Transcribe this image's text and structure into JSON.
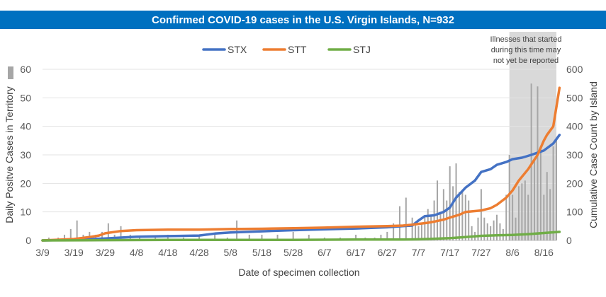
{
  "colors": {
    "title_bg": "#0070c0",
    "stx": "#4472c4",
    "stt": "#ed7d31",
    "stj": "#70ad47",
    "daily_bars": "#a6a6a6",
    "shade": "#d9d9d9"
  },
  "chart_data": {
    "type": "line",
    "title": "Confirmed COVID-19 cases in the U.S. Virgin Islands, N=932",
    "xlabel": "Date of specimen collection",
    "ylabel_left": "Daily Positve Cases in Territory",
    "ylabel_right": "Cumulative Case Count by Island",
    "ylim_left": [
      0,
      60
    ],
    "ylim_right": [
      0,
      600
    ],
    "left_ticks": [
      "0",
      "10",
      "20",
      "30",
      "40",
      "50",
      "60"
    ],
    "right_ticks": [
      "0",
      "100",
      "200",
      "300",
      "400",
      "500",
      "600"
    ],
    "x_tick_labels": [
      "3/9",
      "3/19",
      "3/29",
      "4/8",
      "4/18",
      "4/28",
      "5/8",
      "5/18",
      "5/28",
      "6/7",
      "6/17",
      "6/27",
      "7/7",
      "7/17",
      "7/27",
      "8/6",
      "8/16"
    ],
    "x_range_days": [
      0,
      164
    ],
    "legend_position": "top-center",
    "grid": "horizontal",
    "annotation": {
      "lines": [
        "Illnesses that started",
        "during this time may",
        "not yet be reported"
      ],
      "shaded_from_day": 149,
      "shaded_to_day": 164
    },
    "series": [
      {
        "name": "STX",
        "axis": "right",
        "x_days": [
          0,
          10,
          20,
          30,
          40,
          50,
          55,
          60,
          70,
          80,
          90,
          100,
          110,
          115,
          118,
          120,
          122,
          125,
          128,
          130,
          132,
          135,
          138,
          140,
          143,
          145,
          148,
          150,
          153,
          156,
          160,
          163,
          165
        ],
        "values": [
          0,
          2,
          7,
          13,
          15,
          17,
          24,
          28,
          32,
          36,
          39,
          42,
          46,
          50,
          52,
          70,
          85,
          88,
          100,
          115,
          150,
          185,
          210,
          240,
          250,
          265,
          275,
          285,
          290,
          300,
          315,
          340,
          370
        ]
      },
      {
        "name": "STT",
        "axis": "right",
        "x_days": [
          0,
          10,
          15,
          18,
          20,
          25,
          30,
          40,
          50,
          60,
          70,
          80,
          90,
          100,
          110,
          115,
          118,
          120,
          123,
          125,
          128,
          130,
          133,
          135,
          140,
          143,
          145,
          148,
          150,
          152,
          155,
          158,
          160,
          161,
          163,
          165
        ],
        "values": [
          0,
          5,
          12,
          17,
          25,
          33,
          36,
          38,
          38,
          40,
          41,
          43,
          45,
          48,
          50,
          52,
          55,
          58,
          62,
          66,
          73,
          80,
          90,
          100,
          105,
          113,
          125,
          150,
          175,
          210,
          250,
          300,
          350,
          370,
          400,
          535
        ]
      },
      {
        "name": "STJ",
        "axis": "right",
        "x_days": [
          0,
          20,
          40,
          60,
          80,
          100,
          110,
          115,
          120,
          125,
          130,
          135,
          140,
          145,
          150,
          155,
          160,
          165
        ],
        "values": [
          0,
          1,
          2,
          2,
          2,
          3,
          3,
          3,
          4,
          6,
          8,
          12,
          16,
          18,
          19,
          22,
          26,
          30
        ]
      },
      {
        "name": "Daily positive cases",
        "type": "bar",
        "axis": "left",
        "x_days": [
          2,
          5,
          7,
          9,
          11,
          13,
          15,
          17,
          19,
          21,
          23,
          25,
          28,
          31,
          36,
          40,
          45,
          50,
          55,
          59,
          62,
          66,
          70,
          75,
          80,
          85,
          90,
          95,
          100,
          103,
          106,
          108,
          110,
          112,
          114,
          116,
          118,
          119,
          120,
          121,
          122,
          123,
          124,
          125,
          126,
          127,
          128,
          129,
          130,
          131,
          132,
          133,
          134,
          135,
          136,
          137,
          138,
          139,
          140,
          141,
          142,
          143,
          144,
          145,
          146,
          147,
          148,
          149,
          150,
          151,
          152,
          153,
          154,
          155,
          156,
          157,
          158,
          159,
          160,
          161,
          162,
          163,
          164
        ],
        "values": [
          1,
          1,
          2,
          4,
          7,
          2,
          3,
          2,
          3,
          6,
          2,
          5,
          2,
          1,
          1,
          2,
          1,
          2,
          2,
          1,
          7,
          2,
          2,
          2,
          3,
          2,
          1,
          1,
          2,
          1,
          1,
          2,
          3,
          6,
          12,
          15,
          8,
          6,
          5,
          6,
          8,
          11,
          9,
          14,
          21,
          10,
          18,
          14,
          26,
          19,
          27,
          17,
          17,
          16,
          14,
          5,
          3,
          8,
          18,
          8,
          6,
          5,
          7,
          9,
          6,
          4,
          16,
          30,
          16,
          8,
          19,
          20,
          21,
          16,
          55,
          28,
          54,
          32,
          16,
          24,
          18,
          33,
          36
        ]
      }
    ]
  }
}
